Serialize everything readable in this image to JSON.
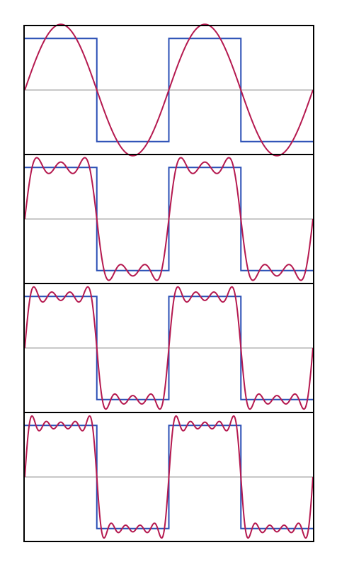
{
  "chart_data": [
    {
      "type": "line",
      "x": "time, 2 periods",
      "xlim": [
        0,
        2
      ],
      "ylim": [
        -1.25,
        1.25
      ],
      "grid": false,
      "series": [
        {
          "kind": "square-wave",
          "amplitude": 1,
          "period": 1,
          "color": "#2a4fb5"
        },
        {
          "kind": "fourier-partial-sum",
          "harmonics": [
            1
          ],
          "color": "#b5194f"
        }
      ]
    },
    {
      "type": "line",
      "xlim": [
        0,
        2
      ],
      "ylim": [
        -1.25,
        1.25
      ],
      "grid": false,
      "series": [
        {
          "kind": "square-wave",
          "amplitude": 1,
          "period": 1,
          "color": "#2a4fb5"
        },
        {
          "kind": "fourier-partial-sum",
          "harmonics": [
            1,
            3,
            5
          ],
          "color": "#b5194f"
        }
      ]
    },
    {
      "type": "line",
      "xlim": [
        0,
        2
      ],
      "ylim": [
        -1.25,
        1.25
      ],
      "grid": false,
      "series": [
        {
          "kind": "square-wave",
          "amplitude": 1,
          "period": 1,
          "color": "#2a4fb5"
        },
        {
          "kind": "fourier-partial-sum",
          "harmonics": [
            1,
            3,
            5,
            7
          ],
          "color": "#b5194f"
        }
      ]
    },
    {
      "type": "line",
      "xlim": [
        0,
        2
      ],
      "ylim": [
        -1.25,
        1.25
      ],
      "grid": false,
      "series": [
        {
          "kind": "square-wave",
          "amplitude": 1,
          "period": 1,
          "color": "#2a4fb5"
        },
        {
          "kind": "fourier-partial-sum",
          "harmonics": [
            1,
            3,
            5,
            7,
            9
          ],
          "color": "#b5194f"
        }
      ]
    }
  ],
  "colors": {
    "square_wave": "#2a4fb5",
    "approximation": "#b5194f",
    "zero_line": "#c8c8c8",
    "frame": "#000000"
  }
}
